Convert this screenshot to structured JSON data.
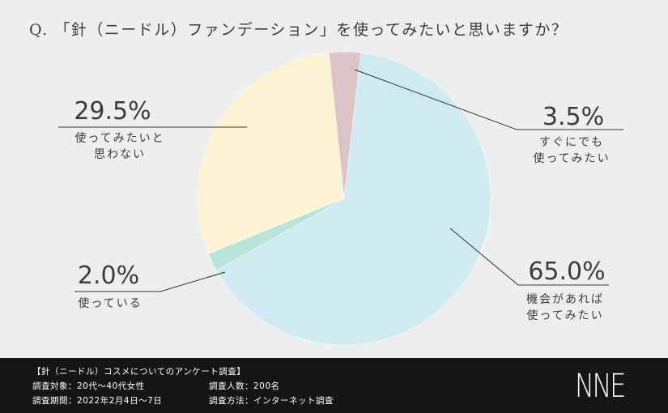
{
  "question": "Q. 「針（ニードル）ファンデーション」を使ってみたいと思いますか？",
  "chart_data": {
    "type": "pie",
    "title": "Q. 「針（ニードル）ファンデーション」を使ってみたいと思いますか？",
    "slices": [
      {
        "pct_label": "3.5%",
        "value": 3.5,
        "label_lines": [
          "すぐにでも",
          "使ってみたい"
        ],
        "color": "#dcc4c6"
      },
      {
        "pct_label": "65.0%",
        "value": 65.0,
        "label_lines": [
          "機会があれば",
          "使ってみたい"
        ],
        "color": "#cfebf1"
      },
      {
        "pct_label": "2.0%",
        "value": 2.0,
        "label_lines": [
          "使っている"
        ],
        "color": "#b8e4d9"
      },
      {
        "pct_label": "29.5%",
        "value": 29.5,
        "label_lines": [
          "使ってみたいと",
          "思わない"
        ],
        "color": "#fdf3d2"
      }
    ]
  },
  "footer": {
    "survey_title": "【針（ニードル）コスメについてのアンケート調査】",
    "target": "調査対象：20代〜40代女性",
    "period": "調査期間：2022年2月4日〜7日",
    "respondents": "調査人数：200名",
    "method": "調査方法：インターネット調査",
    "logo": "NNE"
  },
  "colors": {
    "background": "#ecefee",
    "footer_bg": "#151515",
    "text": "#3c3c3c"
  }
}
